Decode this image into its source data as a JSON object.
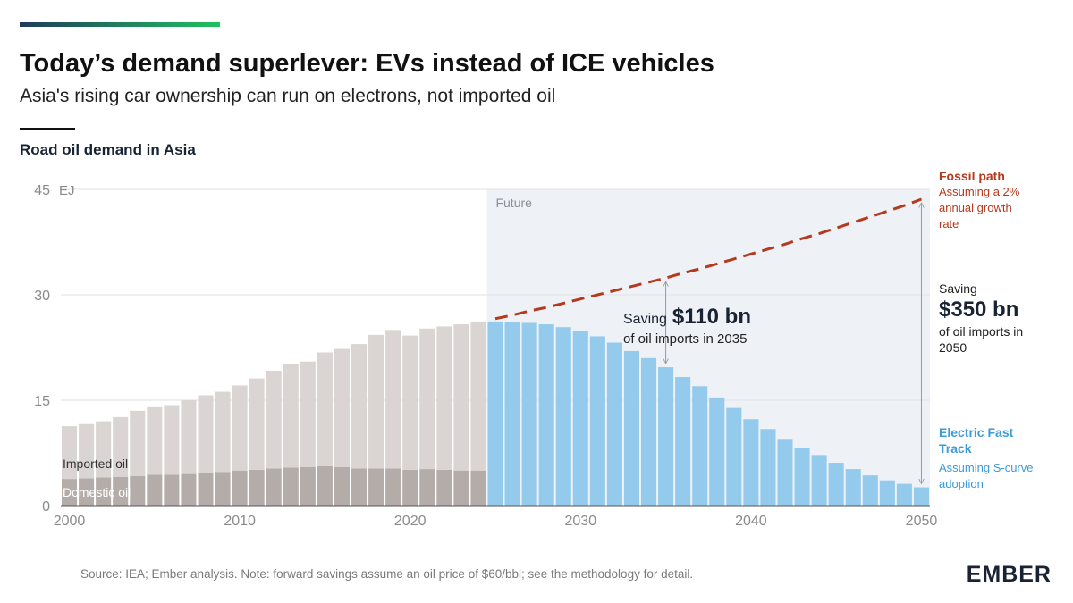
{
  "header": {
    "title": "Today’s demand superlever: EVs instead of ICE vehicles",
    "subtitle": "Asia's rising car ownership can run on electrons, not imported oil"
  },
  "chart_data": {
    "type": "bar",
    "title": "Road oil demand in Asia",
    "y_unit": "EJ",
    "region_label": "Future",
    "x": [
      2000,
      2001,
      2002,
      2003,
      2004,
      2005,
      2006,
      2007,
      2008,
      2009,
      2010,
      2011,
      2012,
      2013,
      2014,
      2015,
      2016,
      2017,
      2018,
      2019,
      2020,
      2021,
      2022,
      2023,
      2024,
      2025,
      2026,
      2027,
      2028,
      2029,
      2030,
      2031,
      2032,
      2033,
      2034,
      2035,
      2036,
      2037,
      2038,
      2039,
      2040,
      2041,
      2042,
      2043,
      2044,
      2045,
      2046,
      2047,
      2048,
      2049,
      2050
    ],
    "xlim": [
      1999.5,
      2050.5
    ],
    "xticks": [
      2000,
      2010,
      2020,
      2030,
      2040,
      2050
    ],
    "ylim": [
      0,
      45
    ],
    "yticks": [
      0,
      15,
      30,
      45
    ],
    "grid": true,
    "series": [
      {
        "name": "Domestic oil",
        "color": "#b4aca8",
        "stack": "history",
        "values": [
          3.8,
          3.9,
          4.0,
          4.1,
          4.2,
          4.4,
          4.4,
          4.5,
          4.7,
          4.8,
          5.0,
          5.1,
          5.3,
          5.4,
          5.5,
          5.6,
          5.5,
          5.3,
          5.3,
          5.3,
          5.1,
          5.2,
          5.1,
          5.0,
          5.0,
          null,
          null,
          null,
          null,
          null,
          null,
          null,
          null,
          null,
          null,
          null,
          null,
          null,
          null,
          null,
          null,
          null,
          null,
          null,
          null,
          null,
          null,
          null,
          null,
          null,
          null
        ]
      },
      {
        "name": "Imported oil",
        "color": "#dad5d3",
        "stack": "history",
        "values": [
          7.5,
          7.7,
          8.0,
          8.5,
          9.3,
          9.6,
          9.9,
          10.5,
          11.0,
          11.4,
          12.1,
          13.0,
          13.9,
          14.7,
          15.0,
          16.2,
          16.8,
          17.7,
          19.0,
          19.7,
          19.1,
          20.0,
          20.4,
          20.8,
          21.2,
          null,
          null,
          null,
          null,
          null,
          null,
          null,
          null,
          null,
          null,
          null,
          null,
          null,
          null,
          null,
          null,
          null,
          null,
          null,
          null,
          null,
          null,
          null,
          null,
          null,
          null
        ]
      },
      {
        "name": "Electric Fast Track",
        "color": "#94cbec",
        "label_color": "#3b9bd8",
        "stack": "future",
        "values": [
          null,
          null,
          null,
          null,
          null,
          null,
          null,
          null,
          null,
          null,
          null,
          null,
          null,
          null,
          null,
          null,
          null,
          null,
          null,
          null,
          null,
          null,
          null,
          null,
          null,
          26.2,
          26.1,
          26.0,
          25.8,
          25.4,
          24.8,
          24.1,
          23.2,
          22.0,
          21.0,
          19.7,
          18.3,
          17.0,
          15.4,
          13.9,
          12.3,
          10.9,
          9.5,
          8.2,
          7.2,
          6.1,
          5.2,
          4.3,
          3.6,
          3.1,
          2.6
        ]
      },
      {
        "name": "Fossil path",
        "color": "#b5391c",
        "type": "line",
        "dashed": true,
        "values": [
          null,
          null,
          null,
          null,
          null,
          null,
          null,
          null,
          null,
          null,
          null,
          null,
          null,
          null,
          null,
          null,
          null,
          null,
          null,
          null,
          null,
          null,
          null,
          null,
          null,
          26.6,
          27.1,
          27.7,
          28.2,
          28.8,
          29.4,
          30.0,
          30.6,
          31.2,
          31.8,
          32.4,
          33.1,
          33.7,
          34.4,
          35.1,
          35.8,
          36.5,
          37.2,
          38.0,
          38.7,
          39.5,
          40.3,
          41.1,
          41.9,
          42.7,
          43.6
        ]
      }
    ],
    "annotations": {
      "fossil_note": "Assuming a 2% annual growth rate",
      "eft_note": "Assuming S-curve adoption",
      "saving_2035": {
        "year": 2035,
        "prefix": "Saving",
        "amount": "$110 bn",
        "suffix": "of oil imports in 2035"
      },
      "saving_2050": {
        "year": 2050,
        "prefix": "Saving",
        "amount": "$350 bn",
        "suffix": "of oil imports in 2050"
      }
    }
  },
  "footer": {
    "source": "Source: IEA; Ember analysis. Note: forward savings assume an oil price of $60/bbl; see the methodology for detail.",
    "logo": "EMBER"
  }
}
